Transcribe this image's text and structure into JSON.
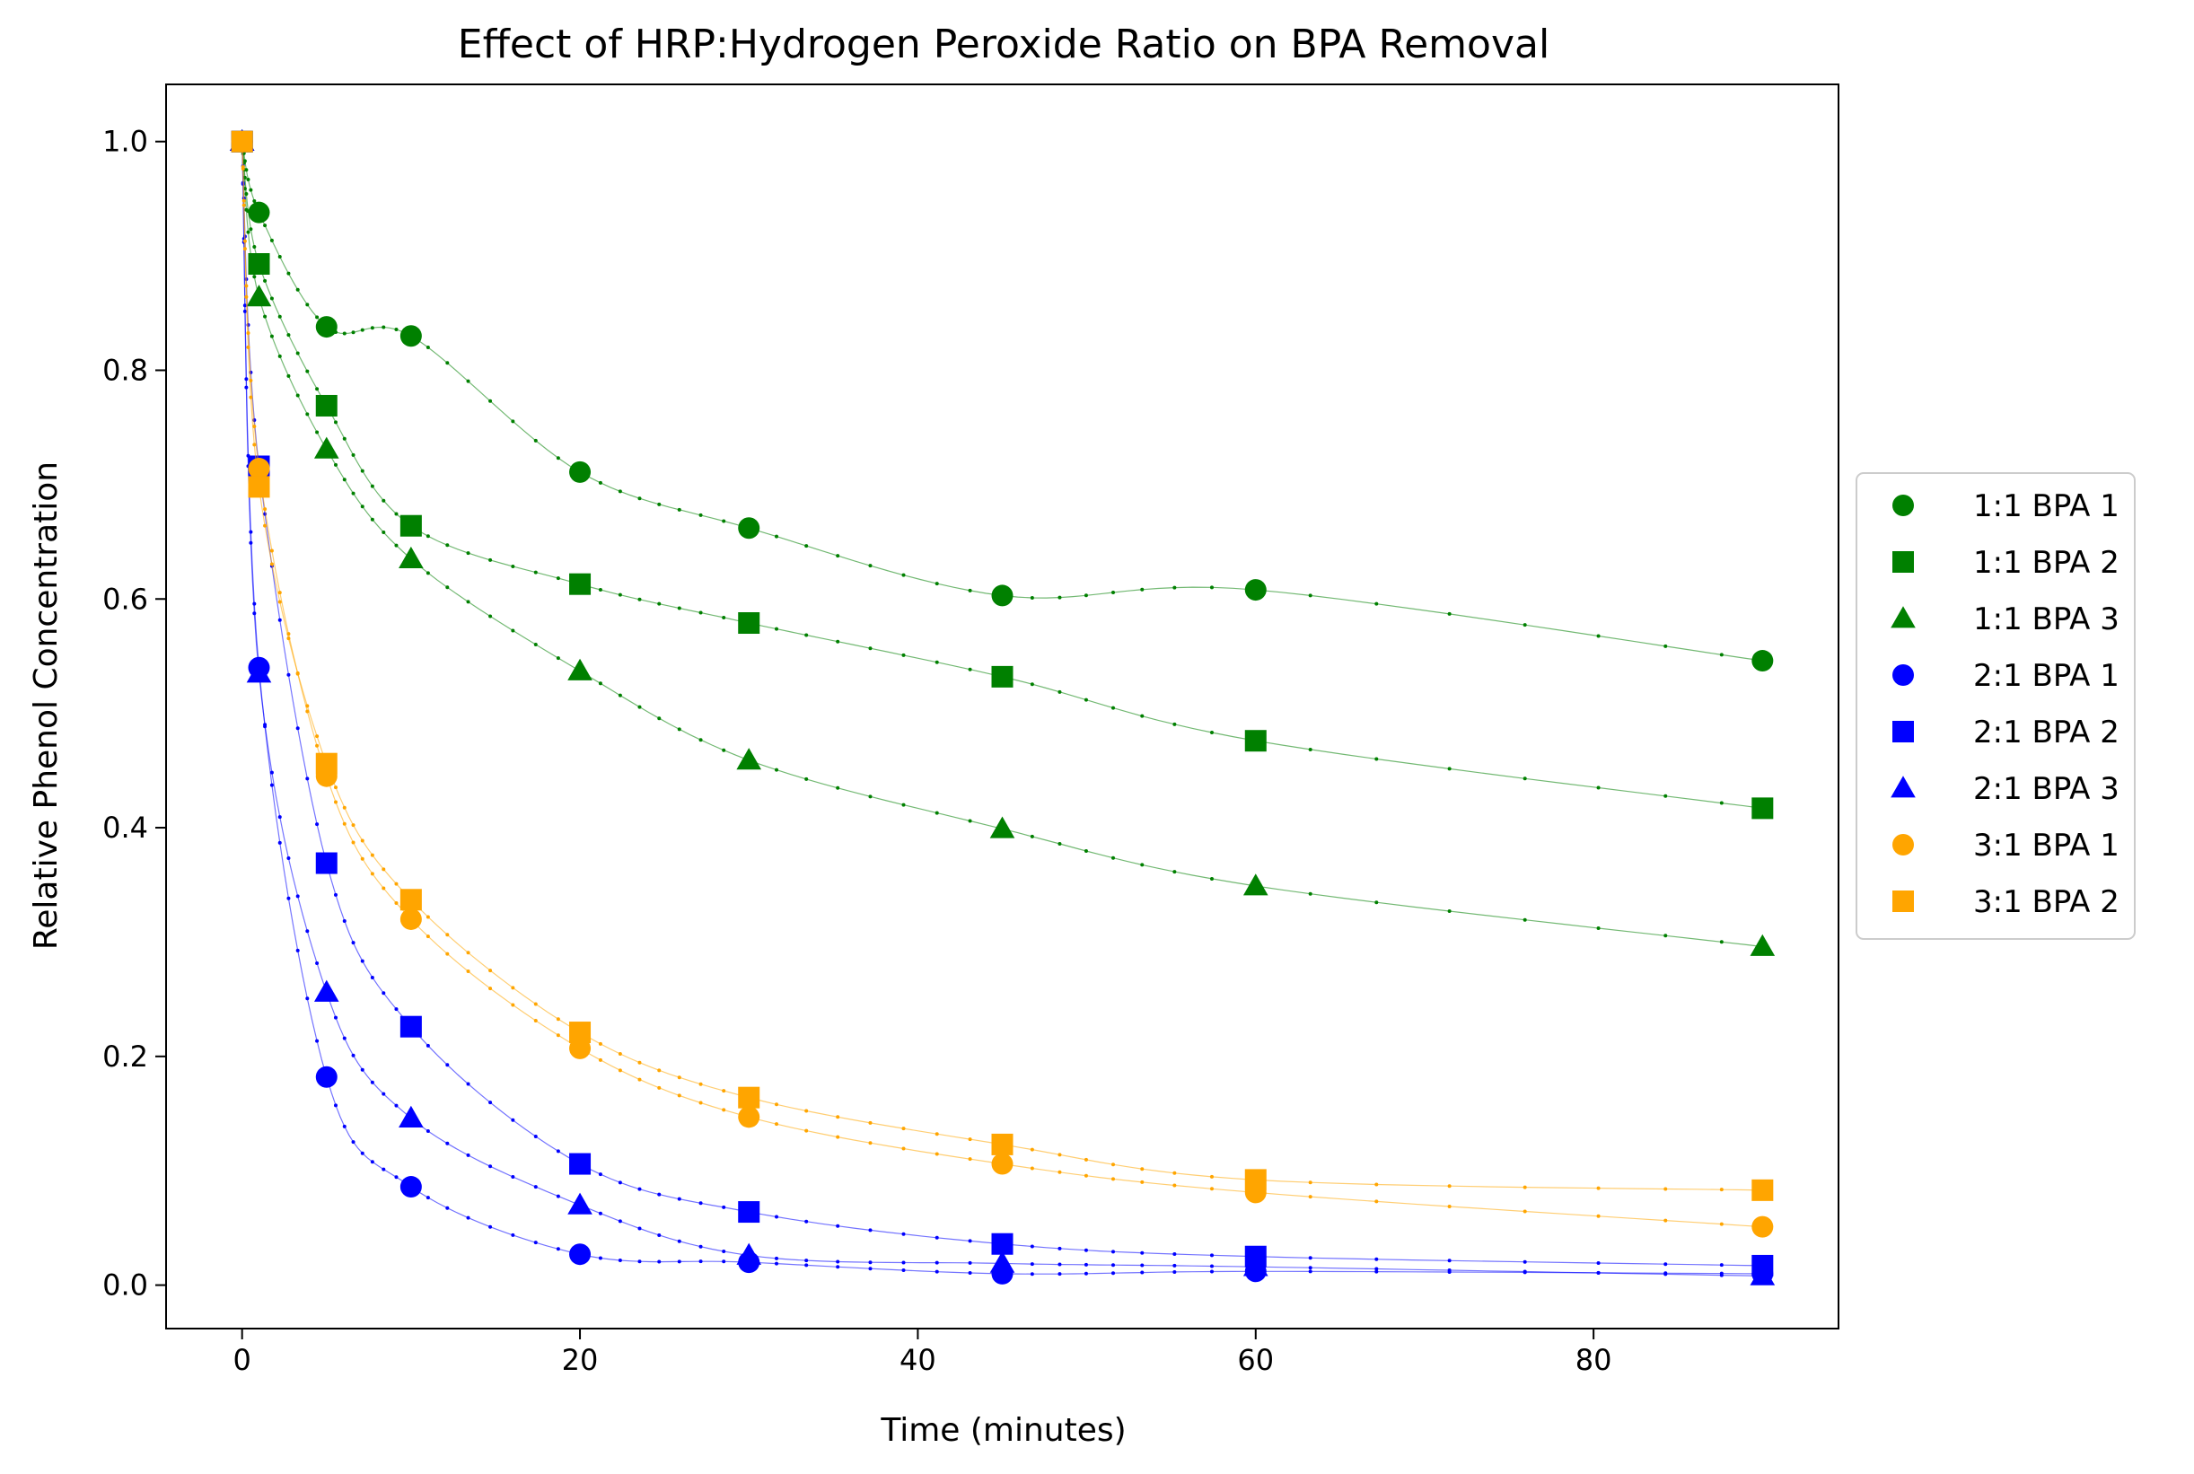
{
  "chart_data": {
    "type": "scatter",
    "title": "Effect of HRP:Hydrogen Peroxide Ratio on BPA Removal",
    "xlabel": "Time (minutes)",
    "ylabel": "Relative Phenol Concentration",
    "xlim": [
      -4.5,
      94.5
    ],
    "ylim": [
      -0.038,
      1.05
    ],
    "x_ticks": [
      0,
      20,
      40,
      60,
      80
    ],
    "y_ticks": [
      0.0,
      0.2,
      0.4,
      0.6,
      0.8,
      1.0
    ],
    "x_tick_labels": [
      "0",
      "20",
      "40",
      "60",
      "80"
    ],
    "y_tick_labels": [
      "0.0",
      "0.2",
      "0.4",
      "0.6",
      "0.8",
      "1.0"
    ],
    "grid": false,
    "legend_position": "center-right outside",
    "x": [
      0,
      1,
      5,
      10,
      20,
      30,
      45,
      60,
      90
    ],
    "series": [
      {
        "name": "1:1 BPA 1",
        "color": "#008000",
        "marker": "circle",
        "values": [
          1.0,
          0.938,
          0.838,
          0.83,
          0.711,
          0.662,
          0.603,
          0.608,
          0.546
        ]
      },
      {
        "name": "1:1 BPA 2",
        "color": "#008000",
        "marker": "square",
        "values": [
          1.0,
          0.893,
          0.769,
          0.664,
          0.613,
          0.579,
          0.532,
          0.476,
          0.417
        ]
      },
      {
        "name": "1:1 BPA 3",
        "color": "#008000",
        "marker": "triangle",
        "values": [
          1.0,
          0.864,
          0.731,
          0.635,
          0.537,
          0.459,
          0.399,
          0.349,
          0.296
        ]
      },
      {
        "name": "2:1 BPA 1",
        "color": "#0000ff",
        "marker": "circle",
        "values": [
          1.0,
          0.54,
          0.182,
          0.086,
          0.027,
          0.02,
          0.01,
          0.012,
          0.01
        ]
      },
      {
        "name": "2:1 BPA 2",
        "color": "#0000ff",
        "marker": "square",
        "values": [
          1.0,
          0.716,
          0.369,
          0.226,
          0.106,
          0.064,
          0.036,
          0.025,
          0.017
        ]
      },
      {
        "name": "2:1 BPA 3",
        "color": "#0000ff",
        "marker": "triangle",
        "values": [
          1.0,
          0.535,
          0.256,
          0.146,
          0.07,
          0.026,
          0.019,
          0.016,
          0.008
        ]
      },
      {
        "name": "3:1 BPA 1",
        "color": "#ffa500",
        "marker": "circle",
        "values": [
          1.0,
          0.714,
          0.445,
          0.32,
          0.207,
          0.147,
          0.106,
          0.081,
          0.051
        ]
      },
      {
        "name": "3:1 BPA 2",
        "color": "#ffa500",
        "marker": "square",
        "values": [
          1.0,
          0.698,
          0.456,
          0.337,
          0.221,
          0.164,
          0.123,
          0.092,
          0.083
        ]
      }
    ]
  }
}
